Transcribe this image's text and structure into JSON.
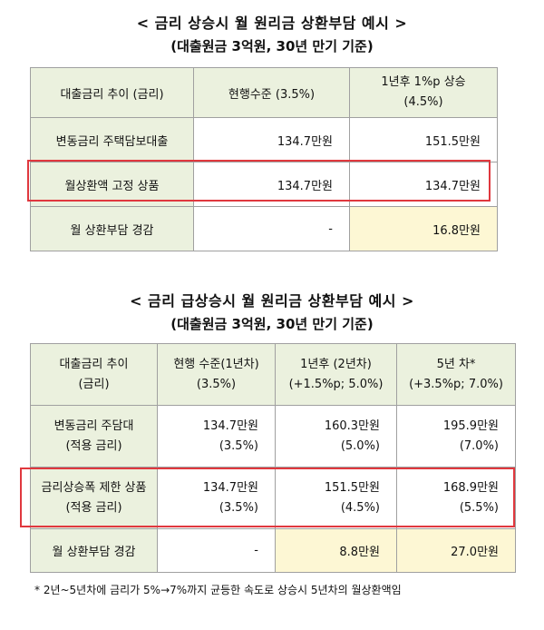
{
  "table1": {
    "title": "< 금리 상승시 월 원리금 상환부담 예시 >",
    "subtitle": "(대출원금 3억원, 30년 만기 기준)",
    "headers": {
      "col0": "대출금리 추이 (금리)",
      "col1": "현행수준 (3.5%)",
      "col2_line1": "1년후 1%p 상승",
      "col2_line2": "(4.5%)"
    },
    "rows": [
      {
        "label": "변동금리 주택담보대출",
        "v1": "134.7만원",
        "v2": "151.5만원"
      },
      {
        "label": "월상환액 고정 상품",
        "v1": "134.7만원",
        "v2": "134.7만원"
      },
      {
        "label": "월 상환부담 경감",
        "v1": "-",
        "v2": "16.8만원"
      }
    ]
  },
  "table2": {
    "title": "< 금리 급상승시 월 원리금 상환부담 예시 >",
    "subtitle": "(대출원금 3억원, 30년 만기 기준)",
    "headers": {
      "col0_line1": "대출금리 추이",
      "col0_line2": "(금리)",
      "col1_line1": "현행 수준(1년차)",
      "col1_line2": "(3.5%)",
      "col2_line1": "1년후 (2년차)",
      "col2_line2": "(+1.5%p; 5.0%)",
      "col3_line1": "5년 차*",
      "col3_line2": "(+3.5%p; 7.0%)"
    },
    "rows": [
      {
        "label1": "변동금리 주담대",
        "label2": "(적용 금리)",
        "v1a": "134.7만원",
        "v1b": "(3.5%)",
        "v2a": "160.3만원",
        "v2b": "(5.0%)",
        "v3a": "195.9만원",
        "v3b": "(7.0%)"
      },
      {
        "label1": "금리상승폭 제한 상품",
        "label2": "(적용 금리)",
        "v1a": "134.7만원",
        "v1b": "(3.5%)",
        "v2a": "151.5만원",
        "v2b": "(4.5%)",
        "v3a": "168.9만원",
        "v3b": "(5.5%)"
      }
    ],
    "relief": {
      "label": "월 상환부담 경감",
      "v1": "-",
      "v2": "8.8만원",
      "v3": "27.0만원"
    }
  },
  "footnote": "* 2년~5년차에 금리가 5%→7%까지 균등한 속도로 상승시 5년차의 월상환액임",
  "colors": {
    "header_bg": "#ebf1de",
    "highlight_bg": "#fdf7d4",
    "box_red": "#e0383e"
  }
}
